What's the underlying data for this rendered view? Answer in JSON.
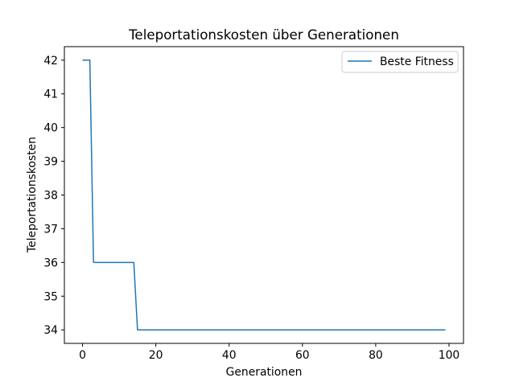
{
  "chart_data": {
    "type": "line",
    "title": "Teleportationskosten über Generationen",
    "xlabel": "Generationen",
    "ylabel": "Teleportationskosten",
    "xlim": [
      -4.95,
      103.95
    ],
    "ylim": [
      33.6,
      42.4
    ],
    "xticks": [
      0,
      20,
      40,
      60,
      80,
      100
    ],
    "yticks": [
      34,
      35,
      36,
      37,
      38,
      39,
      40,
      41,
      42
    ],
    "grid": false,
    "legend_position": "top-right",
    "series": [
      {
        "name": "Beste Fitness",
        "color": "#1f77b4",
        "points": [
          [
            0,
            42
          ],
          [
            2,
            42
          ],
          [
            3,
            36
          ],
          [
            14,
            36
          ],
          [
            15,
            34
          ],
          [
            99,
            34
          ]
        ]
      }
    ]
  }
}
